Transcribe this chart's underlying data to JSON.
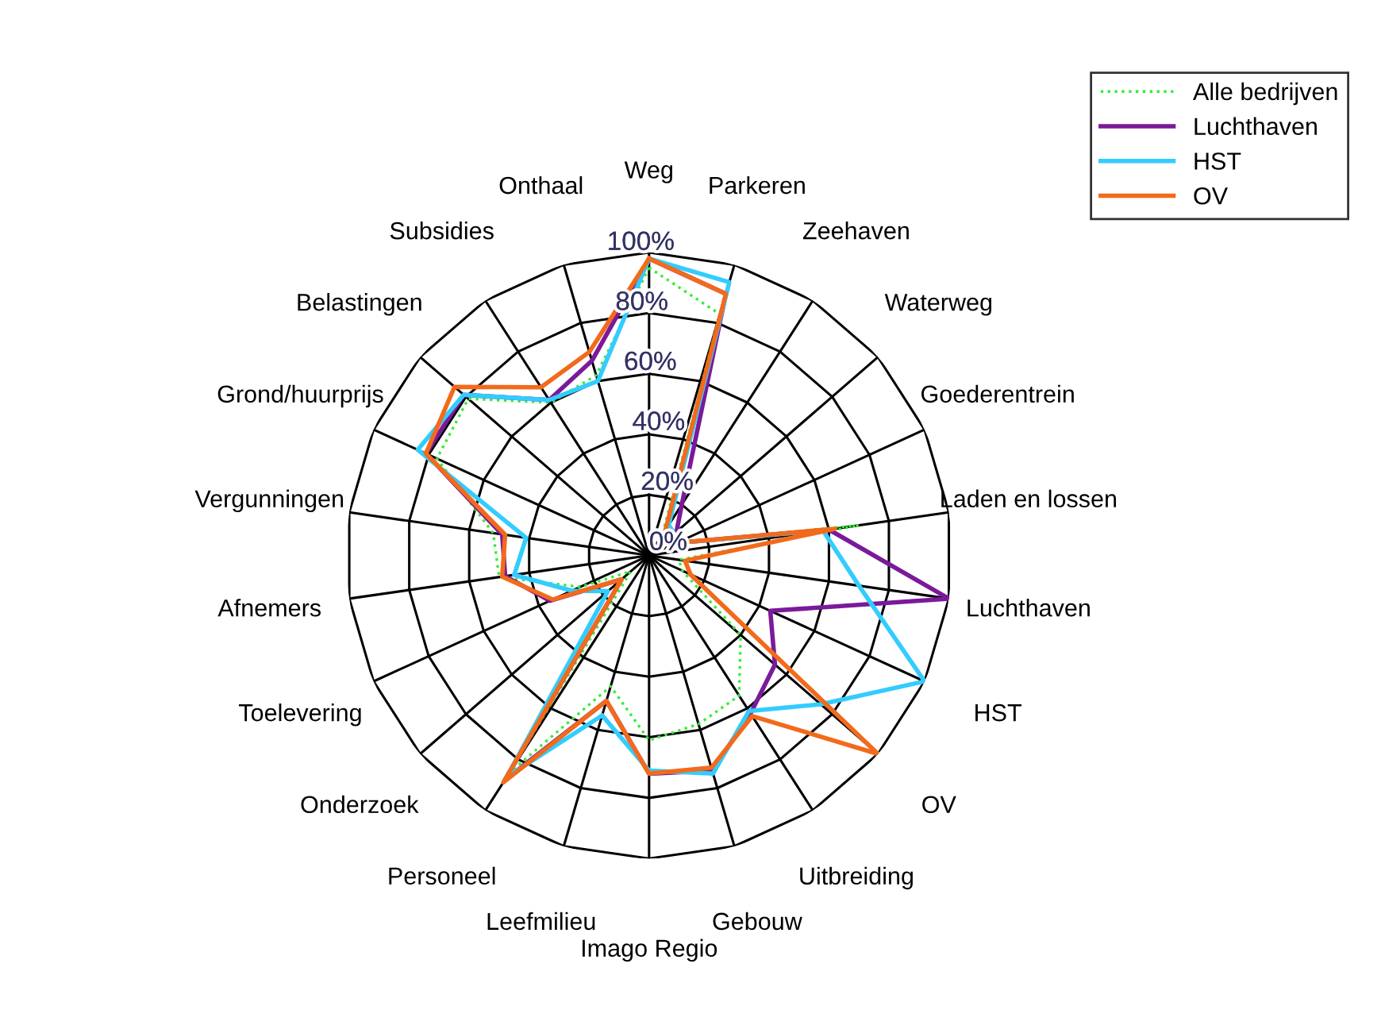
{
  "chart_data": {
    "type": "radar",
    "categories": [
      "Weg",
      "Parkeren",
      "Zeehaven",
      "Waterweg",
      "Goederentrein",
      "Laden en lossen",
      "Luchthaven",
      "HST",
      "OV",
      "Uitbreiding",
      "Gebouw",
      "Imago Regio",
      "Leefmilieu",
      "Personeel",
      "Onderzoek",
      "Toelevering",
      "Afnemers",
      "Vergunningen",
      "Grond/huurprijs",
      "Belastingen",
      "Subsidies",
      "Onthaal"
    ],
    "ylim": [
      0,
      100
    ],
    "yticks": [
      {
        "value": 0,
        "label": "0%"
      },
      {
        "value": 20,
        "label": "20%"
      },
      {
        "value": 40,
        "label": "40%"
      },
      {
        "value": 60,
        "label": "60%"
      },
      {
        "value": 80,
        "label": "80%"
      },
      {
        "value": 100,
        "label": "100%"
      }
    ],
    "grid": true,
    "legend": "top right",
    "series": [
      {
        "name": "Alle bedrijven",
        "color": "#33ee33",
        "line_style": "dotted",
        "values": [
          95,
          83,
          8,
          7,
          10,
          70,
          10,
          12,
          40,
          55,
          58,
          61,
          45,
          85,
          8,
          25,
          50,
          52,
          77,
          79,
          60,
          62
        ]
      },
      {
        "name": "Luchthaven",
        "color": "#7a1a9a",
        "line_style": "solid",
        "values": [
          98,
          90,
          20,
          12,
          10,
          60,
          100,
          44,
          55,
          62,
          74,
          72,
          50,
          88,
          12,
          36,
          48,
          49,
          81,
          81,
          61,
          67
        ]
      },
      {
        "name": "HST",
        "color": "#33ccff",
        "line_style": "solid",
        "values": [
          98,
          94,
          12,
          11,
          10,
          58,
          70,
          100,
          75,
          61,
          75,
          71,
          55,
          87,
          18,
          28,
          45,
          41,
          84,
          81,
          61,
          60
        ]
      },
      {
        "name": "OV",
        "color": "#f26a1b",
        "line_style": "solid",
        "values": [
          98,
          90,
          10,
          8,
          10,
          62,
          12,
          15,
          100,
          63,
          73,
          72,
          50,
          89,
          12,
          35,
          49,
          48,
          81,
          85,
          66,
          70
        ]
      }
    ]
  }
}
